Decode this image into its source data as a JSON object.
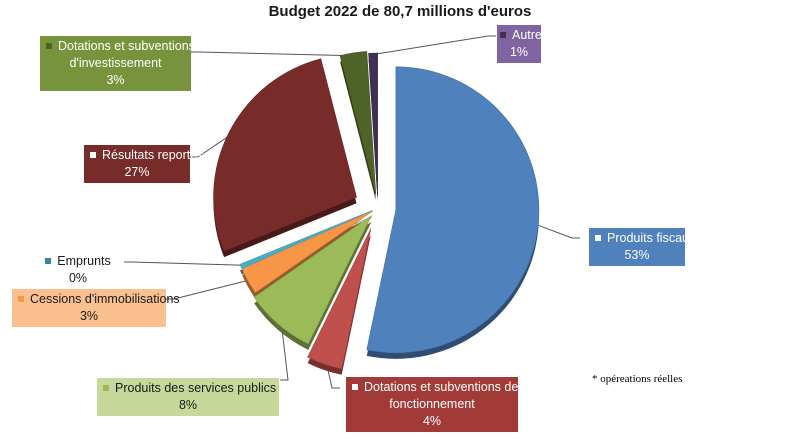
{
  "chart_data": {
    "type": "pie",
    "title": "Budget 2022 de 80,7 millions d'euros",
    "slices": [
      {
        "name": "Produits fiscaux",
        "value": 53,
        "label": "53%",
        "color": "#4f81bd"
      },
      {
        "name": "Dotations et subventions de fonctionnement",
        "value": 4,
        "label": "4%",
        "color": "#c0504d"
      },
      {
        "name": "Produits des services publics",
        "value": 8,
        "label": "8%",
        "color": "#9bbb59"
      },
      {
        "name": "Cessions d'immobilisations",
        "value": 3,
        "label": "3%",
        "color": "#f79646"
      },
      {
        "name": "Emprunts",
        "value": 0.5,
        "label": "0%",
        "color": "#4bacc6"
      },
      {
        "name": "Résultats reportés",
        "value": 27,
        "label": "27%",
        "color": "#772c2a"
      },
      {
        "name": "Dotations et subventions d'investissement",
        "value": 3,
        "label": "3%",
        "color": "#4f6228"
      },
      {
        "name": "Autres",
        "value": 1,
        "label": "1%",
        "color": "#403152"
      }
    ]
  },
  "labels": {
    "produits_fiscaux": {
      "line1": "Produits fiscaux",
      "pct": "53%"
    },
    "dotations_fonct": {
      "line1": "Dotations et subventions de",
      "line2": "fonctionnement",
      "pct": "4%"
    },
    "services_publics": {
      "line1": "Produits des services publics",
      "pct": "8%"
    },
    "cessions": {
      "line1": "Cessions d'immobilisations",
      "pct": "3%"
    },
    "emprunts": {
      "line1": "Emprunts",
      "pct": "0%"
    },
    "resultats": {
      "line1": "Résultats reportés",
      "pct": "27%"
    },
    "dotations_invest": {
      "line1": "Dotations et subventions",
      "line2": "d'investissement",
      "pct": "3%"
    },
    "autres": {
      "line1": "Autres",
      "pct": "1%"
    }
  },
  "note": "* opéreations réelles"
}
